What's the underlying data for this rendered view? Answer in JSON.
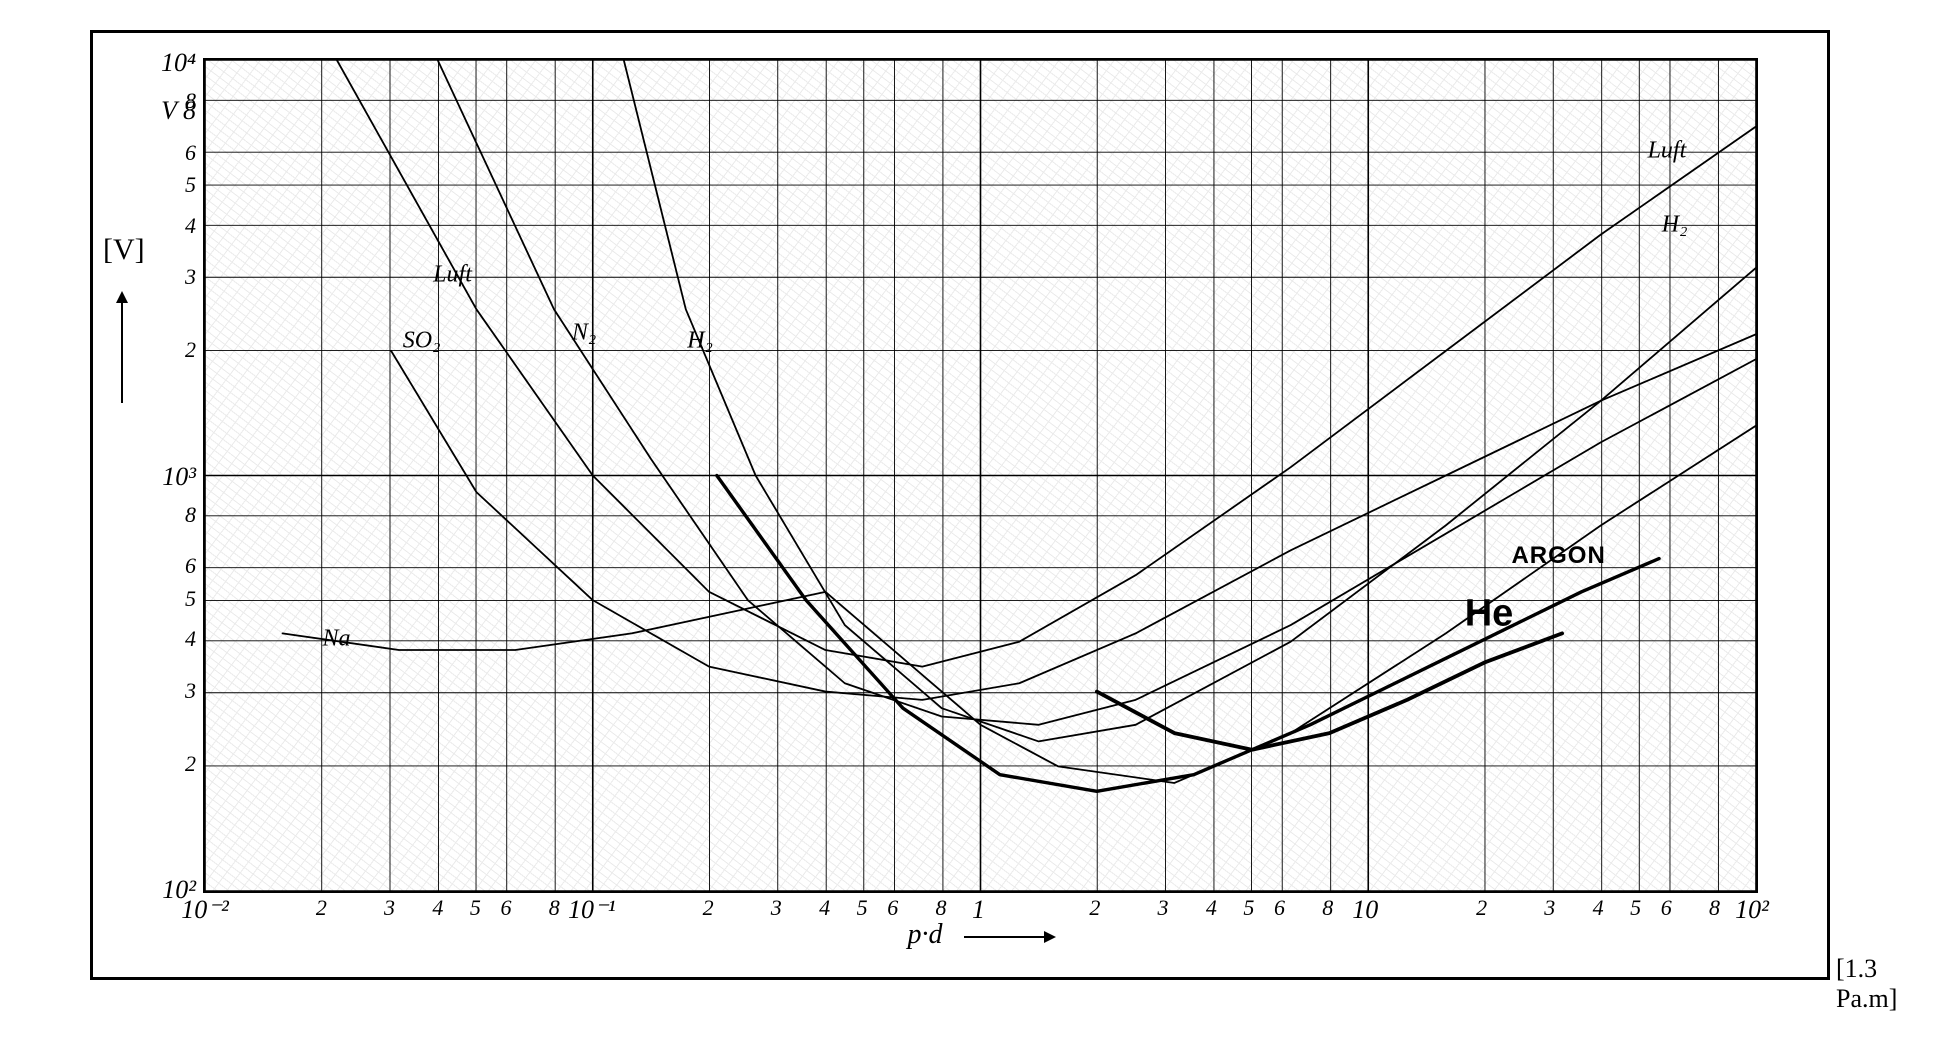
{
  "chart": {
    "type": "line-loglog",
    "background_color": "#ffffff",
    "border_color": "#000000",
    "grid_color_major": "#000000",
    "grid_color_minor": "#000000",
    "grid_line_width_major": 1.6,
    "grid_line_width_minor": 0.9,
    "x": {
      "label": "p·d",
      "unit": "[1.3 Pa.m]",
      "scale": "log",
      "min_exp": -2,
      "max_exp": 2,
      "decades": [
        -2,
        -1,
        0,
        1,
        2
      ],
      "minor_ticks": [
        2,
        3,
        4,
        5,
        6,
        8
      ],
      "tick_labels": {
        "-2": "10⁻²",
        "-1": "10⁻¹",
        "0": "1",
        "1": "10",
        "2": "10²"
      }
    },
    "y": {
      "label": "V",
      "unit": "[V]",
      "scale": "log",
      "min_exp": 2,
      "max_exp": 4,
      "decades": [
        2,
        3,
        4
      ],
      "minor_ticks": [
        2,
        3,
        4,
        5,
        6,
        8
      ],
      "tick_labels": {
        "2": "10²",
        "3": "10³",
        "4": "10⁴"
      }
    },
    "series": [
      {
        "name": "Luft",
        "label": "Luft",
        "color": "#000000",
        "line_width": 1.8,
        "label_points": [
          {
            "x_exp": -1.36,
            "y_exp": 3.48
          },
          {
            "x_exp": 1.78,
            "y_exp": 3.78
          }
        ],
        "points": [
          {
            "x_exp": -1.66,
            "y_exp": 4.0
          },
          {
            "x_exp": -1.3,
            "y_exp": 3.4
          },
          {
            "x_exp": -1.0,
            "y_exp": 3.0
          },
          {
            "x_exp": -0.7,
            "y_exp": 2.72
          },
          {
            "x_exp": -0.4,
            "y_exp": 2.58
          },
          {
            "x_exp": -0.15,
            "y_exp": 2.54
          },
          {
            "x_exp": 0.1,
            "y_exp": 2.6
          },
          {
            "x_exp": 0.4,
            "y_exp": 2.76
          },
          {
            "x_exp": 0.8,
            "y_exp": 3.02
          },
          {
            "x_exp": 1.2,
            "y_exp": 3.3
          },
          {
            "x_exp": 1.6,
            "y_exp": 3.58
          },
          {
            "x_exp": 2.0,
            "y_exp": 3.84
          }
        ]
      },
      {
        "name": "SO2",
        "label": "SO₂",
        "color": "#000000",
        "line_width": 1.8,
        "label_points": [
          {
            "x_exp": -1.44,
            "y_exp": 3.32
          }
        ],
        "points": [
          {
            "x_exp": -1.52,
            "y_exp": 3.3
          },
          {
            "x_exp": -1.3,
            "y_exp": 2.96
          },
          {
            "x_exp": -1.0,
            "y_exp": 2.7
          },
          {
            "x_exp": -0.7,
            "y_exp": 2.54
          },
          {
            "x_exp": -0.4,
            "y_exp": 2.48
          },
          {
            "x_exp": -0.15,
            "y_exp": 2.46
          },
          {
            "x_exp": 0.1,
            "y_exp": 2.5
          },
          {
            "x_exp": 0.4,
            "y_exp": 2.62
          },
          {
            "x_exp": 0.8,
            "y_exp": 2.82
          },
          {
            "x_exp": 1.2,
            "y_exp": 3.0
          },
          {
            "x_exp": 1.6,
            "y_exp": 3.18
          },
          {
            "x_exp": 2.0,
            "y_exp": 3.34
          }
        ]
      },
      {
        "name": "N2",
        "label": "N₂",
        "color": "#000000",
        "line_width": 1.8,
        "label_points": [
          {
            "x_exp": -1.02,
            "y_exp": 3.34
          }
        ],
        "points": [
          {
            "x_exp": -1.4,
            "y_exp": 4.0
          },
          {
            "x_exp": -1.1,
            "y_exp": 3.4
          },
          {
            "x_exp": -0.85,
            "y_exp": 3.04
          },
          {
            "x_exp": -0.6,
            "y_exp": 2.7
          },
          {
            "x_exp": -0.35,
            "y_exp": 2.5
          },
          {
            "x_exp": -0.1,
            "y_exp": 2.42
          },
          {
            "x_exp": 0.15,
            "y_exp": 2.4
          },
          {
            "x_exp": 0.4,
            "y_exp": 2.46
          },
          {
            "x_exp": 0.8,
            "y_exp": 2.64
          },
          {
            "x_exp": 1.2,
            "y_exp": 2.86
          },
          {
            "x_exp": 1.6,
            "y_exp": 3.08
          },
          {
            "x_exp": 2.0,
            "y_exp": 3.28
          }
        ]
      },
      {
        "name": "H2",
        "label": "H₂",
        "color": "#000000",
        "line_width": 1.8,
        "label_points": [
          {
            "x_exp": -0.72,
            "y_exp": 3.32
          },
          {
            "x_exp": 1.8,
            "y_exp": 3.6
          }
        ],
        "points": [
          {
            "x_exp": -0.92,
            "y_exp": 4.0
          },
          {
            "x_exp": -0.76,
            "y_exp": 3.4
          },
          {
            "x_exp": -0.58,
            "y_exp": 3.0
          },
          {
            "x_exp": -0.35,
            "y_exp": 2.64
          },
          {
            "x_exp": -0.1,
            "y_exp": 2.44
          },
          {
            "x_exp": 0.15,
            "y_exp": 2.36
          },
          {
            "x_exp": 0.4,
            "y_exp": 2.4
          },
          {
            "x_exp": 0.8,
            "y_exp": 2.6
          },
          {
            "x_exp": 1.2,
            "y_exp": 2.88
          },
          {
            "x_exp": 1.6,
            "y_exp": 3.18
          },
          {
            "x_exp": 2.0,
            "y_exp": 3.5
          }
        ]
      },
      {
        "name": "Na",
        "label": "Na",
        "color": "#000000",
        "line_width": 1.8,
        "label_points": [
          {
            "x_exp": -1.66,
            "y_exp": 2.6
          }
        ],
        "points": [
          {
            "x_exp": -1.8,
            "y_exp": 2.62
          },
          {
            "x_exp": -1.5,
            "y_exp": 2.58
          },
          {
            "x_exp": -1.2,
            "y_exp": 2.58
          },
          {
            "x_exp": -0.9,
            "y_exp": 2.62
          },
          {
            "x_exp": -0.6,
            "y_exp": 2.68
          },
          {
            "x_exp": -0.4,
            "y_exp": 2.72
          },
          {
            "x_exp": -0.2,
            "y_exp": 2.56
          },
          {
            "x_exp": 0.0,
            "y_exp": 2.4
          },
          {
            "x_exp": 0.2,
            "y_exp": 2.3
          },
          {
            "x_exp": 0.5,
            "y_exp": 2.26
          },
          {
            "x_exp": 0.8,
            "y_exp": 2.38
          },
          {
            "x_exp": 1.2,
            "y_exp": 2.62
          },
          {
            "x_exp": 1.6,
            "y_exp": 2.88
          },
          {
            "x_exp": 2.0,
            "y_exp": 3.12
          }
        ]
      },
      {
        "name": "ARGON",
        "label": "ARGON",
        "color": "#000000",
        "line_width": 3.4,
        "label_points": [
          {
            "x_exp": 1.5,
            "y_exp": 2.8
          }
        ],
        "points": [
          {
            "x_exp": -0.68,
            "y_exp": 3.0
          },
          {
            "x_exp": -0.45,
            "y_exp": 2.7
          },
          {
            "x_exp": -0.2,
            "y_exp": 2.44
          },
          {
            "x_exp": 0.05,
            "y_exp": 2.28
          },
          {
            "x_exp": 0.3,
            "y_exp": 2.24
          },
          {
            "x_exp": 0.55,
            "y_exp": 2.28
          },
          {
            "x_exp": 0.85,
            "y_exp": 2.4
          },
          {
            "x_exp": 1.2,
            "y_exp": 2.56
          },
          {
            "x_exp": 1.55,
            "y_exp": 2.72
          },
          {
            "x_exp": 1.75,
            "y_exp": 2.8
          }
        ]
      },
      {
        "name": "He",
        "label": "He",
        "color": "#000000",
        "line_width": 3.8,
        "label_points": [
          {
            "x_exp": 1.32,
            "y_exp": 2.66
          }
        ],
        "points": [
          {
            "x_exp": 0.3,
            "y_exp": 2.48
          },
          {
            "x_exp": 0.5,
            "y_exp": 2.38
          },
          {
            "x_exp": 0.7,
            "y_exp": 2.34
          },
          {
            "x_exp": 0.9,
            "y_exp": 2.38
          },
          {
            "x_exp": 1.1,
            "y_exp": 2.46
          },
          {
            "x_exp": 1.3,
            "y_exp": 2.55
          },
          {
            "x_exp": 1.5,
            "y_exp": 2.62
          }
        ]
      }
    ]
  },
  "labels": {
    "y_axis_V": "V   8",
    "y_unit": "[V]",
    "x_label": "p·d",
    "x_unit": "[1.3 Pa.m]"
  }
}
